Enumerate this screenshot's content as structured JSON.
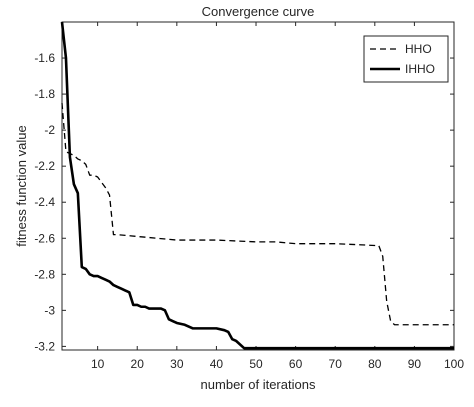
{
  "chart_data": {
    "type": "line",
    "title": "Convergence curve",
    "xlabel": "number of iterations",
    "ylabel": "fitness function value",
    "xlim": [
      1,
      100
    ],
    "ylim": [
      -3.22,
      -1.4
    ],
    "xticks": [
      10,
      20,
      30,
      40,
      50,
      60,
      70,
      80,
      90,
      100
    ],
    "yticks": [
      -1.6,
      -1.8,
      -2,
      -2.2,
      -2.4,
      -2.6,
      -2.8,
      -3,
      -3.2
    ],
    "ytick_labels": [
      "-1.6",
      "-1.8",
      "-2",
      "-2.2",
      "-2.4",
      "-2.6",
      "-2.8",
      "-3",
      "-3.2"
    ],
    "grid": false,
    "legend_position": "top-right",
    "series": [
      {
        "name": "HHO",
        "style": "dashed",
        "color": "#000000",
        "points": [
          [
            1,
            -1.85
          ],
          [
            2,
            -2.12
          ],
          [
            3,
            -2.13
          ],
          [
            4,
            -2.14
          ],
          [
            5,
            -2.16
          ],
          [
            6,
            -2.17
          ],
          [
            7,
            -2.19
          ],
          [
            8,
            -2.25
          ],
          [
            9,
            -2.25
          ],
          [
            10,
            -2.26
          ],
          [
            11,
            -2.29
          ],
          [
            12,
            -2.32
          ],
          [
            13,
            -2.36
          ],
          [
            14,
            -2.58
          ],
          [
            15,
            -2.58
          ],
          [
            20,
            -2.59
          ],
          [
            25,
            -2.6
          ],
          [
            30,
            -2.61
          ],
          [
            40,
            -2.61
          ],
          [
            50,
            -2.62
          ],
          [
            55,
            -2.62
          ],
          [
            60,
            -2.63
          ],
          [
            70,
            -2.63
          ],
          [
            80,
            -2.64
          ],
          [
            81,
            -2.64
          ],
          [
            82,
            -2.7
          ],
          [
            83,
            -2.95
          ],
          [
            84,
            -3.06
          ],
          [
            85,
            -3.08
          ],
          [
            90,
            -3.08
          ],
          [
            100,
            -3.08
          ]
        ]
      },
      {
        "name": "IHHO",
        "style": "solid",
        "color": "#000000",
        "points": [
          [
            1,
            -1.4
          ],
          [
            2,
            -1.6
          ],
          [
            3,
            -2.15
          ],
          [
            4,
            -2.3
          ],
          [
            5,
            -2.35
          ],
          [
            6,
            -2.76
          ],
          [
            7,
            -2.77
          ],
          [
            8,
            -2.8
          ],
          [
            9,
            -2.81
          ],
          [
            10,
            -2.81
          ],
          [
            11,
            -2.82
          ],
          [
            12,
            -2.83
          ],
          [
            13,
            -2.84
          ],
          [
            14,
            -2.86
          ],
          [
            15,
            -2.87
          ],
          [
            16,
            -2.88
          ],
          [
            17,
            -2.89
          ],
          [
            18,
            -2.9
          ],
          [
            19,
            -2.97
          ],
          [
            20,
            -2.97
          ],
          [
            21,
            -2.98
          ],
          [
            22,
            -2.98
          ],
          [
            23,
            -2.99
          ],
          [
            26,
            -2.99
          ],
          [
            27,
            -3.0
          ],
          [
            28,
            -3.05
          ],
          [
            29,
            -3.06
          ],
          [
            30,
            -3.07
          ],
          [
            32,
            -3.08
          ],
          [
            34,
            -3.1
          ],
          [
            40,
            -3.1
          ],
          [
            42,
            -3.11
          ],
          [
            43,
            -3.12
          ],
          [
            44,
            -3.16
          ],
          [
            45,
            -3.17
          ],
          [
            47,
            -3.21
          ],
          [
            50,
            -3.21
          ],
          [
            60,
            -3.21
          ],
          [
            80,
            -3.21
          ],
          [
            100,
            -3.21
          ]
        ]
      }
    ]
  }
}
